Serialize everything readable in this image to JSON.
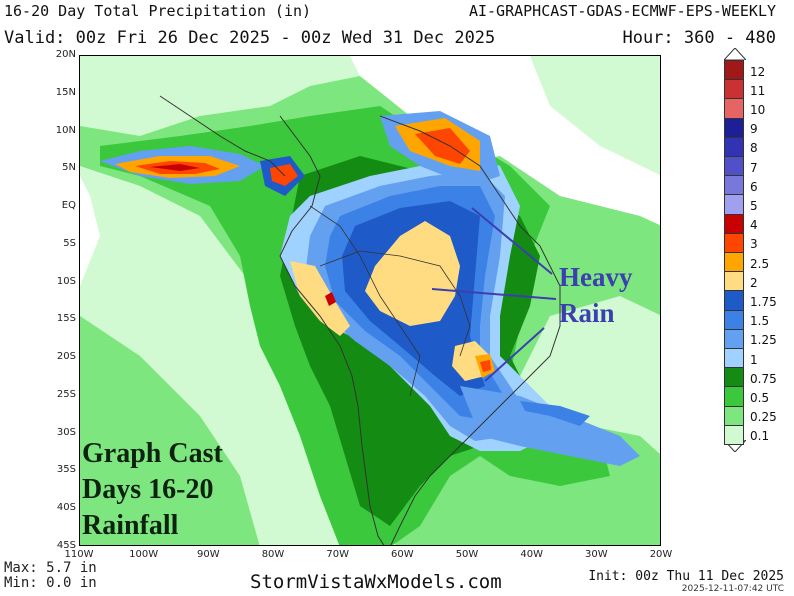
{
  "header": {
    "title_left": "16-20 Day Total Precipitation (in)",
    "title_right": "AI-GRAPHCAST-GDAS-ECMWF-EPS-WEEKLY",
    "valid": "Valid: 00z Fri 26 Dec 2025 - 00z Wed 31 Dec 2025",
    "hour": "Hour: 360 - 480"
  },
  "axes": {
    "lat_labels": [
      "20N",
      "15N",
      "10N",
      "5N",
      "EQ",
      "5S",
      "10S",
      "15S",
      "20S",
      "25S",
      "30S",
      "35S",
      "40S",
      "45S"
    ],
    "lon_labels": [
      "110W",
      "100W",
      "90W",
      "80W",
      "70W",
      "60W",
      "50W",
      "40W",
      "30W",
      "20W"
    ]
  },
  "legend": {
    "labels": [
      "12",
      "11",
      "10",
      "9",
      "8",
      "7",
      "6",
      "5",
      "4",
      "3",
      "2.5",
      "2",
      "1.75",
      "1.5",
      "1.25",
      "1",
      "0.75",
      "0.5",
      "0.25",
      "0.1"
    ],
    "colors": [
      "#a01818",
      "#c83232",
      "#e66464",
      "#1e1e96",
      "#3232b4",
      "#5050c8",
      "#7878dc",
      "#a0a0f0",
      "#c80000",
      "#ff4600",
      "#ffa500",
      "#ffdc82",
      "#1e5ac8",
      "#3c82e6",
      "#64a0f0",
      "#a0d2ff",
      "#148c14",
      "#3cc83c",
      "#7ee67e",
      "#d2fad2"
    ]
  },
  "annotations": {
    "heavy_line1": "Heavy",
    "heavy_line2": "Rain",
    "gc_line1": "Graph Cast",
    "gc_line2": "Days 16-20",
    "gc_line3": "Rainfall"
  },
  "footer": {
    "max": "Max: 5.7 in",
    "min": "Min: 0.0 in",
    "site": "StormVistaWxModels.com",
    "init": "Init: 00z Thu 11 Dec 2025",
    "stamp": "2025-12-11-07:42 UTC"
  },
  "colors": {
    "light_green": "#d2fad2",
    "mid_green": "#7ee67e",
    "green": "#3cc83c",
    "dark_green": "#148c14",
    "pale_blue": "#a0d2ff",
    "blue": "#64a0f0",
    "royal_blue": "#3c82e6",
    "deep_blue": "#1e5ac8",
    "tan": "#ffdc82",
    "orange": "#ffa500",
    "red_orange": "#ff4600",
    "red": "#c80000",
    "annotation_blue": "#3b3fb0"
  }
}
